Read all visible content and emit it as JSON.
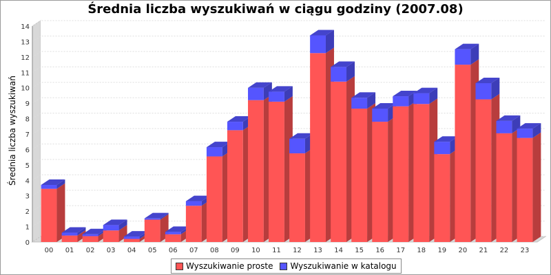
{
  "chart_data": {
    "type": "bar",
    "stacked": true,
    "three_d": true,
    "title": "Średnia liczba wyszukiwań w ciągu godziny (2007.08)",
    "xlabel": "",
    "ylabel": "Średnia liczba wyszukiwań",
    "ylim": [
      0,
      14
    ],
    "yticks": [
      "0",
      "1",
      "2",
      "3",
      "4",
      "5",
      "6",
      "7",
      "8",
      "9",
      "10",
      "11",
      "12",
      "13",
      "14"
    ],
    "categories": [
      "00",
      "01",
      "02",
      "03",
      "04",
      "05",
      "06",
      "07",
      "08",
      "09",
      "10",
      "11",
      "12",
      "13",
      "14",
      "15",
      "16",
      "17",
      "18",
      "19",
      "20",
      "21",
      "22",
      "23"
    ],
    "series": [
      {
        "name": "Wyszukiwanie proste",
        "color": "#ff5555",
        "values": [
          3.45,
          0.42,
          0.38,
          0.75,
          0.2,
          1.45,
          0.5,
          2.35,
          5.55,
          7.25,
          9.2,
          9.1,
          5.75,
          12.25,
          10.4,
          8.65,
          7.8,
          8.8,
          8.95,
          5.7,
          11.5,
          9.25,
          7.05,
          6.75
        ]
      },
      {
        "name": "Wyszukiwanie w katalogu",
        "color": "#5555ff",
        "values": [
          0.25,
          0.18,
          0.12,
          0.35,
          0.15,
          0.08,
          0.15,
          0.3,
          0.6,
          0.55,
          0.8,
          0.65,
          0.95,
          1.15,
          0.95,
          0.7,
          0.85,
          0.65,
          0.7,
          0.8,
          1.0,
          1.05,
          0.8,
          0.6
        ]
      }
    ],
    "grid": true,
    "legend_position": "bottom"
  }
}
